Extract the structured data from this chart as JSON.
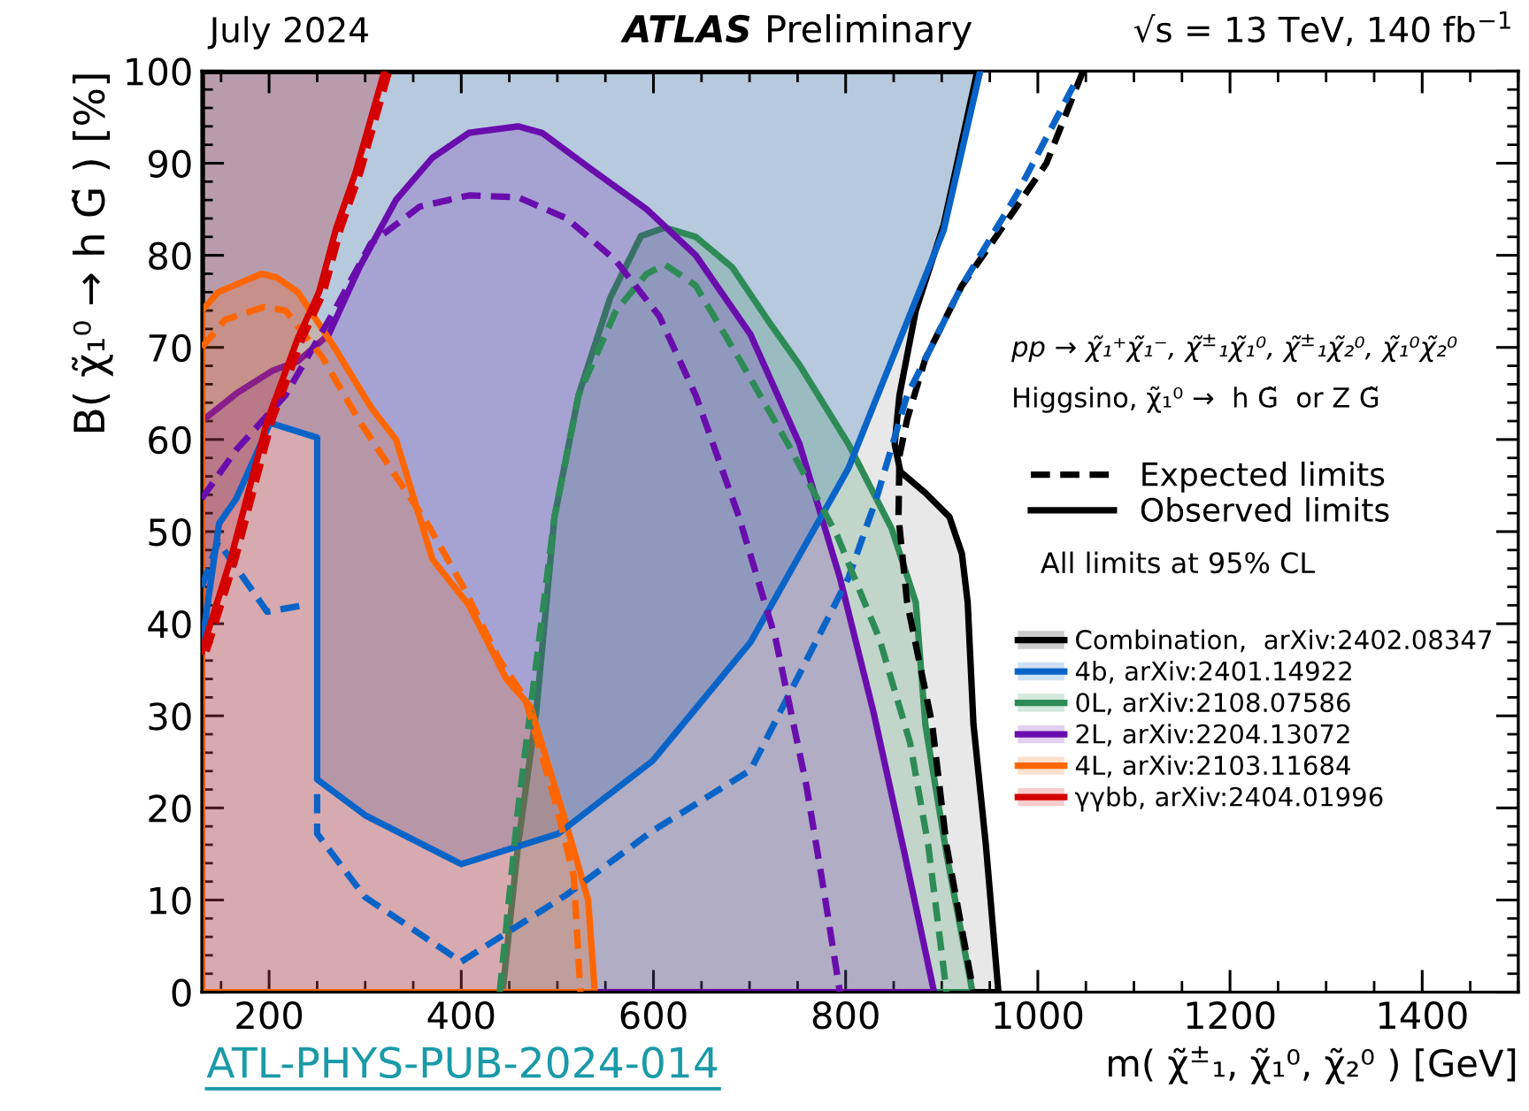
{
  "chart_data": {
    "type": "line",
    "title": "ATLAS Preliminary",
    "xlabel": "m( χ̃$^{±}$₁, χ̃₁⁰, χ̃₂⁰ ) [GeV]",
    "ylabel": "B( χ̃₁⁰ → h G̃ ) [%]",
    "xlim": [
      130,
      1500
    ],
    "ylim": [
      0,
      100
    ],
    "xticks": [
      200,
      400,
      600,
      800,
      1000,
      1200,
      1400
    ],
    "yticks": [
      0,
      10,
      20,
      30,
      40,
      50,
      60,
      70,
      80,
      90,
      100
    ],
    "grid": false,
    "legend": "right",
    "annotations": [
      "July 2024",
      "√s = 13 TeV, 140 fb$^{−1}$",
      "pp → χ̃₁⁺χ̃₁⁻, χ̃$^{±}$₁χ̃₁⁰, χ̃$^{±}$₁χ̃₂⁰, χ̃₁⁰χ̃₂⁰",
      "Higgsino, χ̃₁⁰ →  h G̃  or Z G̃",
      "Expected limits",
      "Observed limits",
      "All limits at 95% CL",
      "ATL-PHYS-PUB-2024-014"
    ],
    "series": [
      {
        "name": "Combination,  arXiv:2402.08347",
        "color": "#000000",
        "type": "area",
        "line_style": "solid",
        "x": [
          130,
          937,
          902,
          873,
          856,
          851,
          857,
          883,
          908,
          921,
          927,
          933,
          946,
          959,
          130
        ],
        "values": [
          100,
          100,
          83.3,
          74,
          64.8,
          59.5,
          56.5,
          54.2,
          51.6,
          47.6,
          42.3,
          29.1,
          15.9,
          0,
          0
        ]
      },
      {
        "color": "#000000",
        "line_style": "dashed",
        "x": [
          1047,
          1009,
          965,
          921,
          883,
          864,
          856,
          855,
          864,
          890,
          905,
          933
        ],
        "values": [
          100,
          90,
          83.3,
          76.7,
          68.8,
          62.2,
          58.2,
          51.6,
          42.3,
          29.1,
          15.9,
          0
        ]
      },
      {
        "name": "4b, arXiv:2401.14922",
        "color": "#0a64c8",
        "line_style": "solid",
        "x": [
          130,
          148,
          166,
          201,
          250,
          250,
          300,
          400,
          501,
          599,
          701,
          803,
          902,
          940
        ],
        "values": [
          37.7,
          50.9,
          53.6,
          61.8,
          60.2,
          23.1,
          19.2,
          13.9,
          17.2,
          25.1,
          38,
          56.9,
          82.7,
          100
        ],
        "lower": [
          37.7,
          50.9,
          53.6,
          61.8,
          60.2,
          23.1,
          19.2,
          13.9,
          17.2,
          25.1,
          38,
          56.9,
          82.7,
          100
        ],
        "upper": [
          100,
          100,
          100,
          100,
          100,
          100,
          100,
          100,
          100,
          100,
          100,
          100,
          100,
          100
        ]
      },
      {
        "color": "#0a64c8",
        "line_style": "dashed",
        "x": [
          130,
          147,
          198,
          236
        ],
        "values": [
          44,
          48.9,
          41.3,
          42
        ]
      },
      {
        "color": "#0a64c8",
        "line_style": "dashed",
        "x": [
          250,
          250,
          300,
          400,
          510,
          599,
          701,
          803,
          832,
          864,
          921,
          978,
          1041
        ],
        "values": [
          21.5,
          17.2,
          10.3,
          3.3,
          10.6,
          17.5,
          24.1,
          45,
          53.6,
          64.8,
          76.7,
          86.6,
          99.2
        ]
      },
      {
        "name": "0L, arXiv:2108.07586",
        "color": "#2e8b57",
        "type": "area",
        "line_style": "solid",
        "x": [
          443,
          459,
          478,
          497,
          522,
          555,
          587,
          612,
          644,
          682,
          720,
          752,
          803,
          848,
          873,
          883,
          905,
          932
        ],
        "values": [
          0,
          15.9,
          30.4,
          51.6,
          64.8,
          75.4,
          82.1,
          83,
          82,
          78.7,
          72.8,
          68.1,
          59.5,
          50.3,
          42.3,
          29,
          15,
          0
        ]
      },
      {
        "color": "#2e8b57",
        "line_style": "dashed",
        "x": [
          440,
          459,
          478,
          497,
          522,
          561,
          593,
          612,
          644,
          689,
          740,
          791,
          835,
          867,
          886,
          905
        ],
        "values": [
          0,
          19.8,
          35.7,
          51.6,
          64.8,
          74,
          78,
          79,
          76.7,
          68.8,
          59.5,
          49.6,
          38.4,
          27.1,
          15.9,
          0
        ]
      },
      {
        "name": "2L, arXiv:2204.13072",
        "color": "#6a0dad",
        "type": "area",
        "line_style": "solid",
        "x": [
          130,
          166,
          204,
          230,
          262,
          294,
          332,
          370,
          408,
          459,
          484,
          536,
          593,
          644,
          701,
          752,
          794,
          829,
          861,
          892
        ],
        "values": [
          62,
          65,
          67.5,
          68.5,
          71.4,
          78.7,
          86,
          90.6,
          93.3,
          94,
          93.3,
          89.3,
          85,
          80,
          71.4,
          59.5,
          45,
          30.4,
          15.2,
          0
        ]
      },
      {
        "color": "#6a0dad",
        "line_style": "dashed",
        "x": [
          130,
          166,
          217,
          268,
          306,
          357,
          408,
          459,
          510,
          561,
          606,
          644,
          689,
          727,
          759,
          778,
          794
        ],
        "values": [
          53.6,
          58.9,
          64.8,
          74,
          81.3,
          85.3,
          86.5,
          86.3,
          84,
          79.4,
          73.4,
          64.8,
          51.6,
          38.4,
          22.5,
          10.6,
          0
        ]
      },
      {
        "name": "4L, arXiv:2103.11684",
        "color": "#ff6600",
        "type": "area",
        "line_style": "solid",
        "x": [
          130,
          147,
          192,
          208,
          230,
          268,
          306,
          332,
          370,
          408,
          447,
          472,
          510,
          532,
          539
        ],
        "values": [
          74,
          76,
          78,
          77.6,
          76,
          70,
          63.5,
          60,
          47,
          42,
          34,
          31,
          18,
          10,
          0
        ]
      },
      {
        "color": "#ff6600",
        "line_style": "dashed",
        "x": [
          130,
          154,
          195,
          217,
          255,
          294,
          332,
          364,
          402,
          440,
          466,
          497,
          517,
          524
        ],
        "values": [
          70,
          73,
          74.4,
          74,
          69,
          62,
          56,
          51,
          44,
          36,
          32,
          21,
          12.6,
          0
        ]
      },
      {
        "name": "γγbb, arXiv:2404.01996",
        "color": "#d40000",
        "line_style": "solid",
        "x": [
          130,
          160,
          198,
          230,
          252,
          270,
          290,
          320
        ],
        "values": [
          37,
          47,
          62,
          71,
          76,
          83,
          89,
          100
        ],
        "lower": [
          37,
          47,
          62,
          71,
          76,
          83,
          89,
          100
        ],
        "upper": [
          100,
          100,
          100,
          100,
          100,
          100,
          100,
          100
        ]
      },
      {
        "color": "#d40000",
        "line_style": "dashed",
        "x": [
          135,
          165,
          203,
          235,
          257,
          275,
          295,
          325
        ],
        "values": [
          37,
          47,
          62,
          71,
          76,
          83,
          89,
          100
        ]
      }
    ]
  }
}
